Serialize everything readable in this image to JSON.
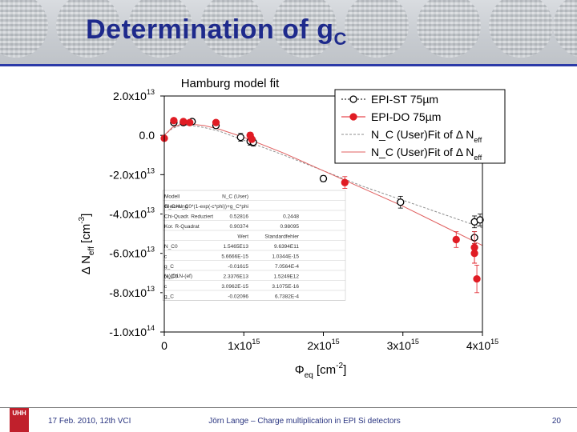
{
  "slide": {
    "title": "Determination of g",
    "title_sub": "C",
    "footer_left": "17 Feb. 2010,  12th VCI",
    "footer_center": "Jörn Lange – Charge multiplication in EPI Si detectors",
    "page_number": "20",
    "logo_text": "UHH"
  },
  "chart_data": {
    "type": "scatter",
    "title": "Hamburg model fit",
    "xlabel": "Φeq [cm-2]",
    "ylabel": "Δ Neff [cm-3]",
    "xlim": [
      0,
      4000000000000000.0
    ],
    "ylim": [
      -100000000000000.0,
      20000000000000.0
    ],
    "xticks": [
      {
        "v": 0,
        "label": "0"
      },
      {
        "v": 1000000000000000.0,
        "label": "1x10",
        "exp": "15"
      },
      {
        "v": 2000000000000000.0,
        "label": "2x10",
        "exp": "15"
      },
      {
        "v": 3000000000000000.0,
        "label": "3x10",
        "exp": "15"
      },
      {
        "v": 4000000000000000.0,
        "label": "4x10",
        "exp": "15"
      }
    ],
    "yticks": [
      {
        "v": 20000000000000.0,
        "label": "2.0x10",
        "exp": "13"
      },
      {
        "v": 0,
        "label": "0.0",
        "exp": ""
      },
      {
        "v": -20000000000000.0,
        "label": "-2.0x10",
        "exp": "13"
      },
      {
        "v": -40000000000000.0,
        "label": "-4.0x10",
        "exp": "13"
      },
      {
        "v": -60000000000000.0,
        "label": "-6.0x10",
        "exp": "13"
      },
      {
        "v": -80000000000000.0,
        "label": "-8.0x10",
        "exp": "13"
      },
      {
        "v": -100000000000000.0,
        "label": "-1.0x10",
        "exp": "14"
      }
    ],
    "series": [
      {
        "name": "EPI-ST 75µm",
        "marker": "open-circle",
        "color": "#000000",
        "x": [
          120000000000000.0,
          240000000000000.0,
          350000000000000.0,
          650000000000000.0,
          960000000000000.0,
          1080000000000000.0,
          1120000000000000.0,
          2000000000000000.0,
          2970000000000000.0,
          3900000000000000.0,
          3900000000000000.0,
          3970000000000000.0
        ],
        "y": [
          6500000000000.0,
          6500000000000.0,
          7000000000000.0,
          5000000000000.0,
          -1000000000000.0,
          -3000000000000.0,
          -3500000000000.0,
          -22000000000000.0,
          -34000000000000.0,
          -44000000000000.0,
          -52000000000000.0,
          -43000000000000.0
        ],
        "yerr": [
          1000000000000.0,
          1000000000000.0,
          1000000000000.0,
          1000000000000.0,
          2000000000000.0,
          2000000000000.0,
          2000000000000.0,
          1500000000000.0,
          3000000000000.0,
          3000000000000.0,
          3000000000000.0,
          3000000000000.0
        ]
      },
      {
        "name": "EPI-DO 75µm",
        "marker": "filled-circle",
        "color": "#e01c24",
        "x": [
          0,
          120000000000000.0,
          240000000000000.0,
          320000000000000.0,
          650000000000000.0,
          1080000000000000.0,
          1100000000000000.0,
          2270000000000000.0,
          3670000000000000.0,
          3900000000000000.0,
          3900000000000000.0,
          3930000000000000.0
        ],
        "y": [
          -1500000000000.0,
          7500000000000.0,
          7000000000000.0,
          6500000000000.0,
          6500000000000.0,
          0,
          -2000000000000.0,
          -24000000000000.0,
          -53000000000000.0,
          -57000000000000.0,
          -60000000000000.0,
          -73000000000000.0
        ],
        "yerr": [
          1000000000000.0,
          1000000000000.0,
          1000000000000.0,
          1000000000000.0,
          1000000000000.0,
          1500000000000.0,
          1500000000000.0,
          3000000000000.0,
          4000000000000.0,
          8000000000000.0,
          5000000000000.0,
          7000000000000.0
        ]
      },
      {
        "name": "N_C (User)Fit of Δ Neff",
        "marker": "line",
        "color": "#8c8c8c",
        "dash": "3,2",
        "x": [
          0,
          100000000000000.0,
          200000000000000.0,
          300000000000000.0,
          500000000000000.0,
          700000000000000.0,
          1000000000000000.0,
          1500000000000000.0,
          2000000000000000.0,
          2500000000000000.0,
          3000000000000000.0,
          3500000000000000.0,
          4000000000000000.0
        ],
        "y": [
          0,
          3500000000000.0,
          5000000000000.0,
          5200000000000.0,
          4000000000000.0,
          2000000000000.0,
          -2500000000000.0,
          -10000000000000.0,
          -18000000000000.0,
          -26000000000000.0,
          -33000000000000.0,
          -40000000000000.0,
          -47000000000000.0
        ]
      },
      {
        "name": "N_C (User)Fit of Δ Neff",
        "marker": "line",
        "color": "#e06060",
        "dash": "",
        "x": [
          0,
          100000000000000.0,
          200000000000000.0,
          300000000000000.0,
          500000000000000.0,
          700000000000000.0,
          1000000000000000.0,
          1500000000000000.0,
          2000000000000000.0,
          2500000000000000.0,
          3000000000000000.0,
          3500000000000000.0,
          4000000000000000.0
        ],
        "y": [
          0,
          4000000000000.0,
          5500000000000.0,
          5800000000000.0,
          5000000000000.0,
          3000000000000.0,
          -1000000000000.0,
          -9000000000000.0,
          -18000000000000.0,
          -27000000000000.0,
          -36000000000000.0,
          -46000000000000.0,
          -56000000000000.0
        ]
      }
    ],
    "legend": {
      "placement": "top-right"
    },
    "fit_table": {
      "rows": [
        [
          "Modell",
          "N_C (User)",
          ""
        ],
        [
          "Gleichung",
          "N_C=N_C0*(1-exp(-c*phi))+g_C*phi",
          ""
        ],
        [
          "Chi-Quadr. Reduziert",
          "0.52816",
          "0.2448"
        ],
        [
          "Kor. R-Quadrat",
          "0.90374",
          "0.98095"
        ],
        [
          "",
          "Wert",
          "Standardfehler"
        ],
        [
          "N_C0",
          "1.5465E13",
          "9.6394E11"
        ],
        [
          "c",
          "5.6666E-15",
          "1.0344E-15"
        ],
        [
          "g_C",
          "-0.01615",
          "7.0564E-4"
        ],
        [
          "N_C0",
          "2.3376E13",
          "1.5249E12"
        ],
        [
          "c",
          "3.0962E-15",
          "3.1075E-16"
        ],
        [
          "g_C",
          "-0.02096",
          "6.7382E-4"
        ]
      ],
      "row_label": "(a)(D1N-(ef)"
    }
  }
}
